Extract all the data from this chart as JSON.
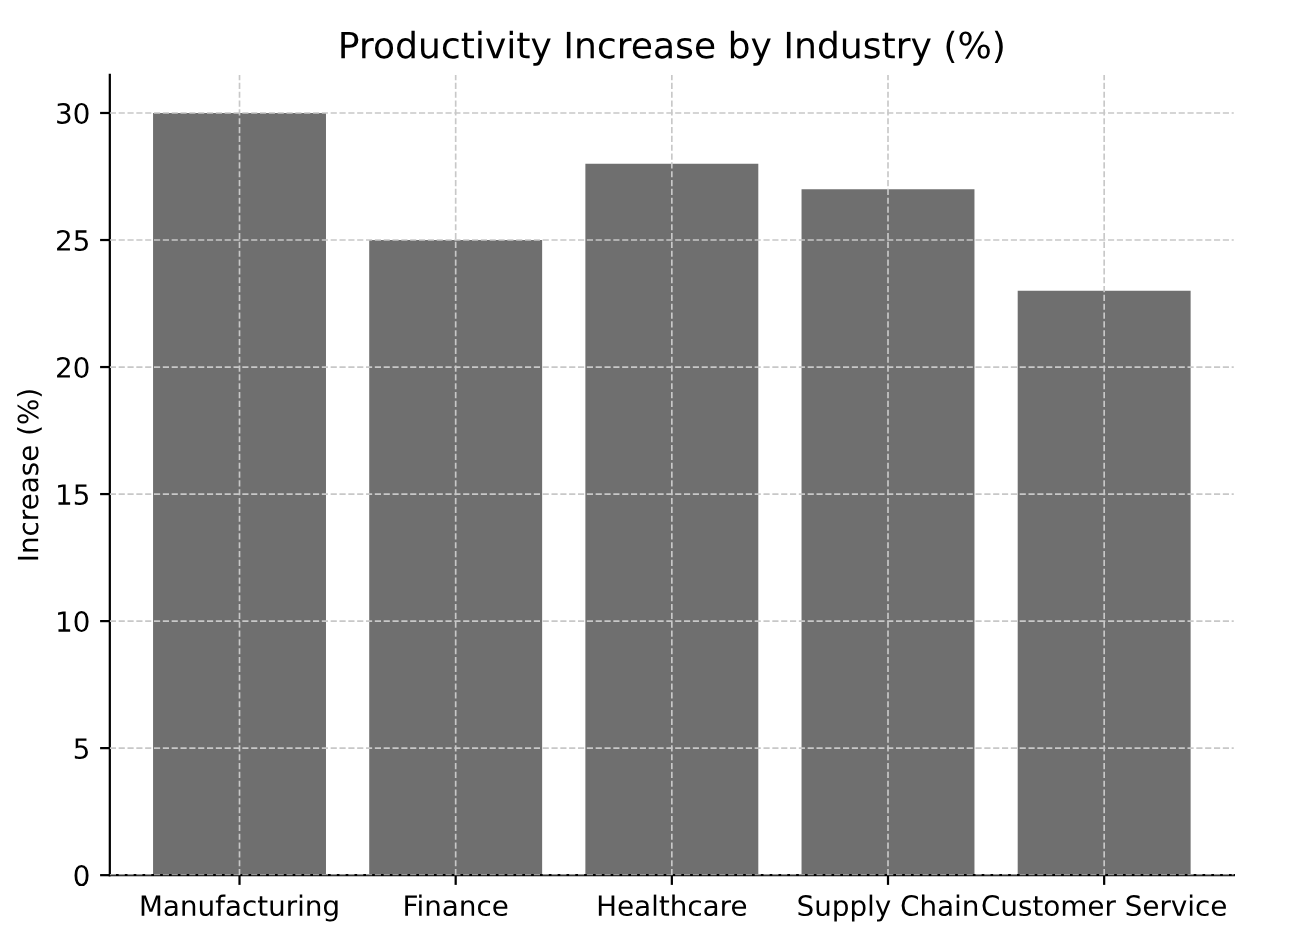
{
  "chart_data": {
    "type": "bar",
    "title": "Productivity Increase by Industry (%)",
    "ylabel": "Increase (%)",
    "categories": [
      "Manufacturing",
      "Finance",
      "Healthcare",
      "Supply Chain",
      "Customer Service"
    ],
    "values": [
      30,
      25,
      28,
      27,
      23
    ],
    "color": "#6f6f6f",
    "ylim": [
      0,
      31.5
    ],
    "yticks": [
      0,
      5,
      10,
      15,
      20,
      25,
      30
    ],
    "grid": true
  }
}
